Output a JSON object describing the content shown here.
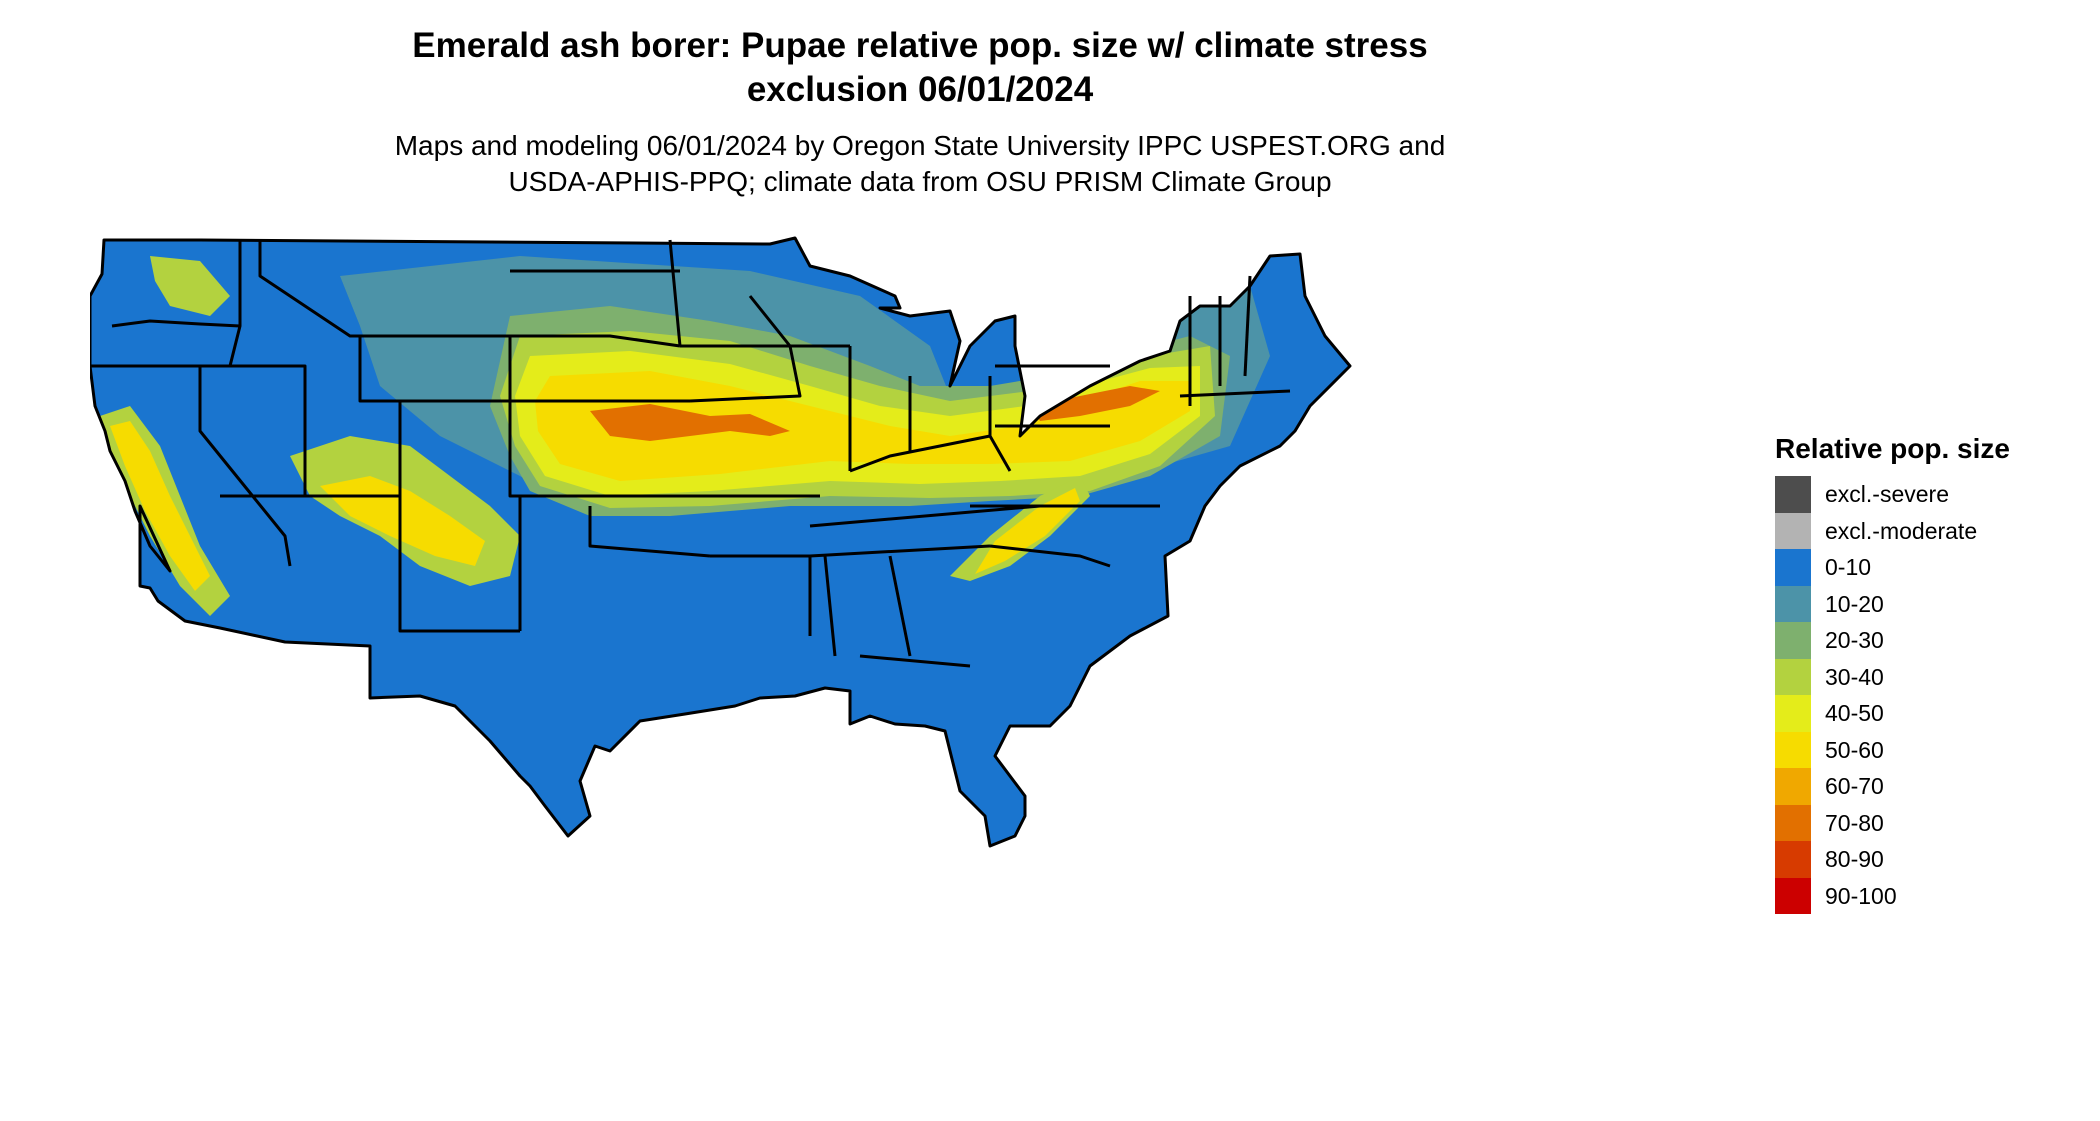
{
  "map": {
    "title_line_1": "Emerald ash borer: Pupae relative pop. size w/ climate stress",
    "title_line_2": "exclusion 06/01/2024",
    "subtitle_line_1": "Maps and modeling 06/01/2024 by Oregon State University IPPC USPEST.ORG and",
    "subtitle_line_2": "USDA-APHIS-PPQ; climate data from OSU PRISM Climate Group"
  },
  "colors": {
    "map_base": "#1a75cf",
    "state_border": "#000000",
    "band_10_20": "#4c93a8",
    "band_20_30": "#7eb06e",
    "band_30_40": "#b3d23f",
    "band_40_50": "#e4ec1a",
    "band_50_60": "#f6dc00",
    "band_60_70": "#f0a800",
    "band_70_80": "#e27000",
    "band_80_90": "#d73b00",
    "band_90_100": "#cc0000"
  },
  "legend": {
    "title": "Relative pop. size",
    "items": [
      {
        "label": "excl.-severe",
        "color": "#4d4d4d"
      },
      {
        "label": "excl.-moderate",
        "color": "#b3b3b3"
      },
      {
        "label": "0-10",
        "color": "#1a75cf"
      },
      {
        "label": "10-20",
        "color": "#4c93a8"
      },
      {
        "label": "20-30",
        "color": "#7eb06e"
      },
      {
        "label": "30-40",
        "color": "#b3d23f"
      },
      {
        "label": "40-50",
        "color": "#e4ec1a"
      },
      {
        "label": "50-60",
        "color": "#f6dc00"
      },
      {
        "label": "60-70",
        "color": "#f0a800"
      },
      {
        "label": "70-80",
        "color": "#e27000"
      },
      {
        "label": "80-90",
        "color": "#d73b00"
      },
      {
        "label": "90-100",
        "color": "#cc0000"
      }
    ]
  }
}
